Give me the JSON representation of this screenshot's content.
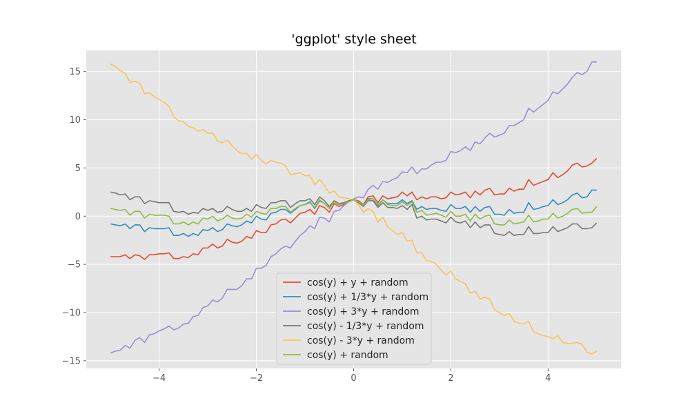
{
  "chart_data": {
    "type": "line",
    "title": "'ggplot' style sheet",
    "xlabel": "",
    "ylabel": "",
    "xlim": [
      -5.5,
      5.5
    ],
    "ylim": [
      -15.8,
      17.2
    ],
    "xticks": [
      -4,
      -2,
      0,
      2,
      4
    ],
    "xtick_labels": [
      "−4",
      "−2",
      "0",
      "2",
      "4"
    ],
    "yticks": [
      -15,
      -10,
      -5,
      0,
      5,
      10,
      15
    ],
    "ytick_labels": [
      "−15",
      "−10",
      "−5",
      "0",
      "5",
      "10",
      "15"
    ],
    "grid": true,
    "legend_placement": "lower center",
    "x": [
      -5.0,
      -4.9,
      -4.8,
      -4.7,
      -4.6,
      -4.5,
      -4.4,
      -4.3,
      -4.2,
      -4.1,
      -4.0,
      -3.9,
      -3.8,
      -3.7,
      -3.6,
      -3.5,
      -3.4,
      -3.3,
      -3.2,
      -3.1,
      -3.0,
      -2.9,
      -2.8,
      -2.7,
      -2.6,
      -2.5,
      -2.4,
      -2.3,
      -2.2,
      -2.1,
      -2.0,
      -1.9,
      -1.8,
      -1.7,
      -1.6,
      -1.5,
      -1.4,
      -1.3,
      -1.2,
      -1.1,
      -1.0,
      -0.9,
      -0.8,
      -0.7,
      -0.6,
      -0.5,
      -0.4,
      -0.3,
      -0.2,
      -0.1,
      0.0,
      0.1,
      0.2,
      0.3,
      0.4,
      0.5,
      0.6,
      0.7,
      0.8,
      0.9,
      1.0,
      1.1,
      1.2,
      1.3,
      1.4,
      1.5,
      1.6,
      1.7,
      1.8,
      1.9,
      2.0,
      2.1,
      2.2,
      2.3,
      2.4,
      2.5,
      2.6,
      2.7,
      2.8,
      2.9,
      3.0,
      3.1,
      3.2,
      3.3,
      3.4,
      3.5,
      3.6,
      3.7,
      3.8,
      3.9,
      4.0,
      4.1,
      4.2,
      4.3,
      4.4,
      4.5,
      4.6,
      4.7,
      4.8,
      4.9,
      5.0
    ],
    "series": [
      {
        "name": "cos(y) + y + random",
        "color": "#E24A33",
        "values": [
          -4.2,
          -4.2,
          -4.2,
          -4.0,
          -4.4,
          -4.0,
          -4.1,
          -4.5,
          -4.0,
          -4.0,
          -3.9,
          -3.9,
          -3.8,
          -4.4,
          -4.4,
          -4.2,
          -4.3,
          -3.9,
          -4.0,
          -3.3,
          -3.3,
          -2.9,
          -3.3,
          -3.1,
          -2.4,
          -2.7,
          -2.8,
          -2.6,
          -2.1,
          -2.3,
          -1.5,
          -1.7,
          -1.7,
          -0.9,
          -0.8,
          -0.4,
          -0.3,
          -0.7,
          -0.2,
          0.3,
          0.4,
          0.7,
          0.2,
          1.1,
          0.9,
          0.4,
          1.3,
          1.0,
          1.2,
          1.5,
          1.7,
          1.6,
          1.2,
          2.0,
          2.1,
          1.4,
          2.1,
          1.8,
          1.9,
          2.0,
          2.5,
          2.1,
          2.5,
          1.7,
          2.0,
          1.8,
          2.0,
          2.0,
          1.8,
          1.9,
          2.5,
          2.2,
          2.3,
          2.5,
          1.9,
          2.6,
          2.2,
          2.7,
          2.9,
          2.2,
          2.3,
          2.3,
          2.9,
          2.6,
          2.8,
          2.8,
          3.8,
          3.2,
          3.4,
          3.6,
          3.8,
          4.5,
          4.0,
          4.3,
          4.7,
          5.3,
          5.5,
          5.1,
          5.2,
          5.5,
          6.0
        ]
      },
      {
        "name": "cos(y) + 1/3*y + random",
        "color": "#348ABD",
        "values": [
          -0.8,
          -0.9,
          -1.0,
          -0.8,
          -1.3,
          -0.9,
          -0.9,
          -1.6,
          -1.2,
          -1.3,
          -1.3,
          -1.3,
          -1.2,
          -2.0,
          -2.0,
          -1.8,
          -2.1,
          -1.8,
          -2.0,
          -1.4,
          -1.5,
          -1.2,
          -1.6,
          -1.4,
          -0.8,
          -1.0,
          -1.1,
          -0.9,
          -0.5,
          -0.7,
          0.0,
          -0.3,
          -0.4,
          0.3,
          0.4,
          0.7,
          0.7,
          0.3,
          0.7,
          1.1,
          1.2,
          1.5,
          0.8,
          1.6,
          1.3,
          0.8,
          1.5,
          1.2,
          1.4,
          1.5,
          1.7,
          1.5,
          1.1,
          1.8,
          1.8,
          1.1,
          1.7,
          1.3,
          1.3,
          1.3,
          1.7,
          1.3,
          1.6,
          0.7,
          1.0,
          0.7,
          0.8,
          0.8,
          0.6,
          0.5,
          1.2,
          0.8,
          0.8,
          1.0,
          0.4,
          1.0,
          0.5,
          0.9,
          1.0,
          0.2,
          0.2,
          0.1,
          0.7,
          0.3,
          0.4,
          0.4,
          1.4,
          0.7,
          0.8,
          1.0,
          1.1,
          1.7,
          1.2,
          1.4,
          1.7,
          2.2,
          2.4,
          1.9,
          2.0,
          2.7,
          2.7
        ]
      },
      {
        "name": "cos(y) + 3*y + random",
        "color": "#988ED5",
        "values": [
          -14.2,
          -14.0,
          -13.9,
          -13.4,
          -13.7,
          -12.9,
          -12.6,
          -13.1,
          -12.3,
          -12.2,
          -11.9,
          -11.7,
          -11.4,
          -11.8,
          -11.6,
          -11.2,
          -11.1,
          -10.4,
          -10.3,
          -9.5,
          -9.3,
          -8.7,
          -8.9,
          -8.5,
          -7.6,
          -7.6,
          -7.6,
          -7.2,
          -6.5,
          -6.5,
          -5.4,
          -5.4,
          -5.1,
          -4.2,
          -3.9,
          -3.4,
          -3.1,
          -3.3,
          -2.6,
          -2.0,
          -1.6,
          -1.0,
          -1.3,
          -0.1,
          -0.2,
          -0.6,
          0.5,
          0.6,
          1.1,
          1.5,
          1.8,
          2.0,
          1.9,
          2.8,
          3.2,
          2.8,
          3.6,
          3.5,
          3.8,
          4.0,
          4.6,
          4.5,
          5.1,
          4.4,
          4.9,
          4.9,
          5.3,
          5.6,
          5.6,
          5.8,
          6.7,
          6.6,
          6.8,
          7.2,
          6.8,
          7.7,
          7.5,
          8.1,
          8.6,
          8.2,
          8.4,
          8.6,
          9.4,
          9.4,
          9.7,
          10.0,
          11.2,
          10.8,
          11.2,
          11.6,
          12.0,
          12.9,
          12.7,
          13.2,
          13.7,
          14.4,
          14.9,
          14.7,
          15.0,
          16.0,
          16.0
        ]
      },
      {
        "name": "cos(y) - 1/3*y + random",
        "color": "#777777",
        "values": [
          2.5,
          2.4,
          2.2,
          2.3,
          1.7,
          2.0,
          2.0,
          1.3,
          1.6,
          1.5,
          1.4,
          1.4,
          1.4,
          0.5,
          0.4,
          0.5,
          0.2,
          0.4,
          0.3,
          0.8,
          0.6,
          0.8,
          0.4,
          0.5,
          1.0,
          0.7,
          0.5,
          0.5,
          0.8,
          0.5,
          1.2,
          0.9,
          0.8,
          1.4,
          1.4,
          1.6,
          1.6,
          0.9,
          1.3,
          1.6,
          1.6,
          1.8,
          1.2,
          2.0,
          1.6,
          1.0,
          1.6,
          1.3,
          1.4,
          1.6,
          1.7,
          1.4,
          1.0,
          1.6,
          1.6,
          0.9,
          1.4,
          0.9,
          0.9,
          0.8,
          1.1,
          0.7,
          1.2,
          -0.2,
          0.0,
          -0.4,
          -0.3,
          -0.3,
          -0.5,
          -0.7,
          -0.1,
          -0.6,
          -0.7,
          -0.5,
          -1.2,
          -0.6,
          -1.2,
          -0.9,
          -0.9,
          -1.8,
          -1.9,
          -2.0,
          -1.6,
          -2.0,
          -1.9,
          -1.9,
          -1.1,
          -1.8,
          -1.8,
          -1.7,
          -1.7,
          -1.1,
          -1.6,
          -1.4,
          -1.2,
          -0.8,
          -0.8,
          -1.3,
          -1.3,
          -1.2,
          -0.7
        ]
      },
      {
        "name": "cos(y) - 3*y + random",
        "color": "#FBC15E",
        "values": [
          15.8,
          15.5,
          15.1,
          14.8,
          13.9,
          14.0,
          13.8,
          12.7,
          12.8,
          12.4,
          12.1,
          11.8,
          11.4,
          10.3,
          9.9,
          9.8,
          9.3,
          9.2,
          8.8,
          9.0,
          8.6,
          8.6,
          7.8,
          7.6,
          7.9,
          7.3,
          6.8,
          6.5,
          6.5,
          5.9,
          6.4,
          5.8,
          5.4,
          5.8,
          5.6,
          5.5,
          5.2,
          4.3,
          4.4,
          4.5,
          4.2,
          4.2,
          3.3,
          3.8,
          3.2,
          2.4,
          2.6,
          2.0,
          1.9,
          1.8,
          1.7,
          1.2,
          0.4,
          0.8,
          0.5,
          -0.6,
          -0.1,
          -1.1,
          -1.5,
          -1.9,
          -1.7,
          -2.6,
          -2.5,
          -3.8,
          -3.8,
          -4.6,
          -4.7,
          -5.0,
          -5.6,
          -6.1,
          -5.7,
          -6.5,
          -6.8,
          -7.0,
          -8.0,
          -7.8,
          -8.6,
          -8.4,
          -8.6,
          -9.7,
          -10.0,
          -10.3,
          -10.1,
          -10.9,
          -11.1,
          -11.2,
          -10.9,
          -12.0,
          -12.2,
          -12.4,
          -12.5,
          -12.7,
          -12.4,
          -13.1,
          -13.2,
          -13.2,
          -13.1,
          -13.3,
          -14.1,
          -14.3,
          -14.0
        ]
      },
      {
        "name": "cos(y) + random",
        "color": "#8EBA42",
        "values": [
          0.8,
          0.7,
          0.6,
          0.7,
          0.1,
          0.5,
          0.5,
          -0.2,
          0.2,
          0.1,
          0.1,
          0.1,
          0.0,
          -0.8,
          -0.8,
          -0.6,
          -0.9,
          -0.6,
          -0.8,
          -0.2,
          -0.3,
          0.0,
          -0.5,
          -0.3,
          0.1,
          -0.2,
          -0.3,
          -0.2,
          0.2,
          -0.1,
          0.5,
          0.3,
          0.2,
          0.8,
          0.8,
          1.0,
          1.0,
          0.4,
          0.8,
          1.1,
          1.2,
          1.4,
          0.9,
          1.7,
          1.3,
          0.8,
          1.5,
          1.2,
          1.3,
          1.5,
          1.7,
          1.5,
          1.1,
          1.7,
          1.8,
          1.2,
          1.7,
          1.2,
          1.1,
          1.1,
          1.5,
          1.1,
          1.5,
          0.4,
          0.6,
          0.1,
          0.2,
          0.3,
          0.1,
          -0.1,
          0.5,
          0.0,
          0.0,
          0.2,
          -0.5,
          0.2,
          -0.3,
          0.0,
          0.1,
          -0.8,
          -0.9,
          -0.9,
          -0.4,
          -0.8,
          -0.7,
          -0.6,
          0.1,
          -0.6,
          -0.5,
          -0.3,
          -0.3,
          0.3,
          -0.2,
          0.0,
          0.3,
          0.7,
          0.8,
          0.3,
          0.4,
          0.4,
          1.0
        ]
      }
    ]
  }
}
